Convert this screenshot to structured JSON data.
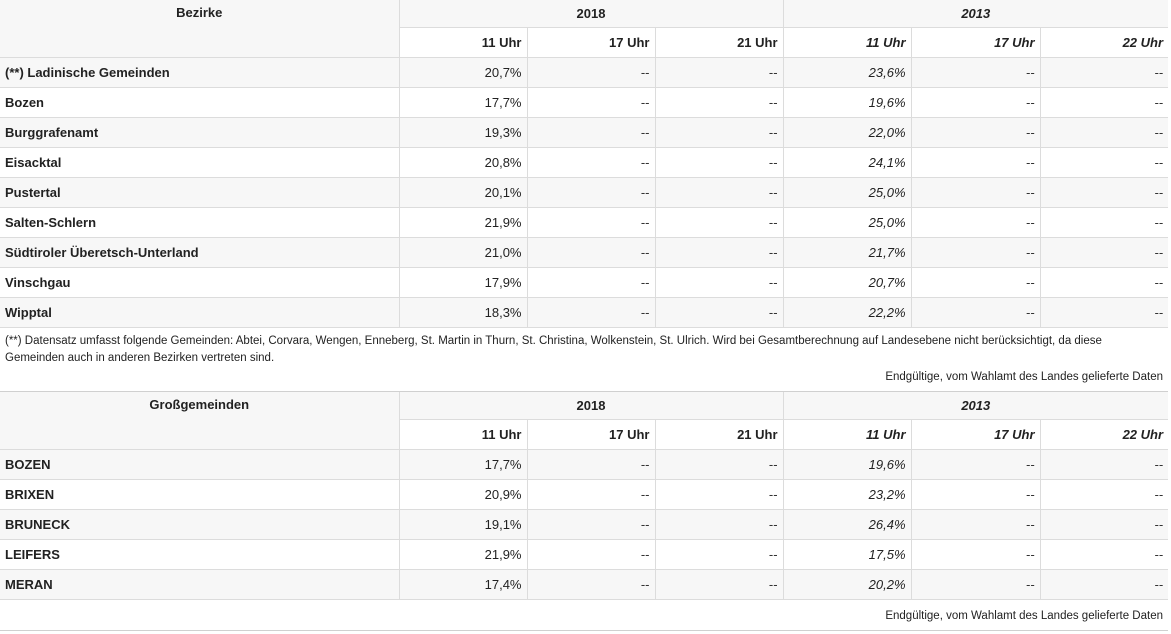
{
  "table1": {
    "section_label": "Bezirke",
    "year_a": "2018",
    "year_b": "2013",
    "hours_a": [
      "11 Uhr",
      "17 Uhr",
      "21 Uhr"
    ],
    "hours_b": [
      "11 Uhr",
      "17 Uhr",
      "22 Uhr"
    ],
    "rows": [
      {
        "name": "(**) Ladinische Gemeinden",
        "v": [
          "20,7%",
          "--",
          "--",
          "23,6%",
          "--",
          "--"
        ]
      },
      {
        "name": "Bozen",
        "v": [
          "17,7%",
          "--",
          "--",
          "19,6%",
          "--",
          "--"
        ]
      },
      {
        "name": "Burggrafenamt",
        "v": [
          "19,3%",
          "--",
          "--",
          "22,0%",
          "--",
          "--"
        ]
      },
      {
        "name": "Eisacktal",
        "v": [
          "20,8%",
          "--",
          "--",
          "24,1%",
          "--",
          "--"
        ]
      },
      {
        "name": "Pustertal",
        "v": [
          "20,1%",
          "--",
          "--",
          "25,0%",
          "--",
          "--"
        ]
      },
      {
        "name": "Salten-Schlern",
        "v": [
          "21,9%",
          "--",
          "--",
          "25,0%",
          "--",
          "--"
        ]
      },
      {
        "name": "Südtiroler Überetsch-Unterland",
        "v": [
          "21,0%",
          "--",
          "--",
          "21,7%",
          "--",
          "--"
        ]
      },
      {
        "name": "Vinschgau",
        "v": [
          "17,9%",
          "--",
          "--",
          "20,7%",
          "--",
          "--"
        ]
      },
      {
        "name": "Wipptal",
        "v": [
          "18,3%",
          "--",
          "--",
          "22,2%",
          "--",
          "--"
        ]
      }
    ],
    "footnote": "(**) Datensatz umfasst folgende Gemeinden: Abtei, Corvara, Wengen, Enneberg, St. Martin in Thurn, St. Christina, Wolkenstein, St. Ulrich. Wird bei Gesamtberechnung auf Landesebene nicht berücksichtigt, da diese Gemeinden auch in anderen Bezirken vertreten sind.",
    "source": "Endgültige, vom Wahlamt des Landes gelieferte Daten"
  },
  "table2": {
    "section_label": "Großgemeinden",
    "year_a": "2018",
    "year_b": "2013",
    "hours_a": [
      "11 Uhr",
      "17 Uhr",
      "21 Uhr"
    ],
    "hours_b": [
      "11 Uhr",
      "17 Uhr",
      "22 Uhr"
    ],
    "rows": [
      {
        "name": "BOZEN",
        "v": [
          "17,7%",
          "--",
          "--",
          "19,6%",
          "--",
          "--"
        ]
      },
      {
        "name": "BRIXEN",
        "v": [
          "20,9%",
          "--",
          "--",
          "23,2%",
          "--",
          "--"
        ]
      },
      {
        "name": "BRUNECK",
        "v": [
          "19,1%",
          "--",
          "--",
          "26,4%",
          "--",
          "--"
        ]
      },
      {
        "name": "LEIFERS",
        "v": [
          "21,9%",
          "--",
          "--",
          "17,5%",
          "--",
          "--"
        ]
      },
      {
        "name": "MERAN",
        "v": [
          "17,4%",
          "--",
          "--",
          "20,2%",
          "--",
          "--"
        ]
      }
    ],
    "source": "Endgültige, vom Wahlamt des Landes gelieferte Daten"
  }
}
